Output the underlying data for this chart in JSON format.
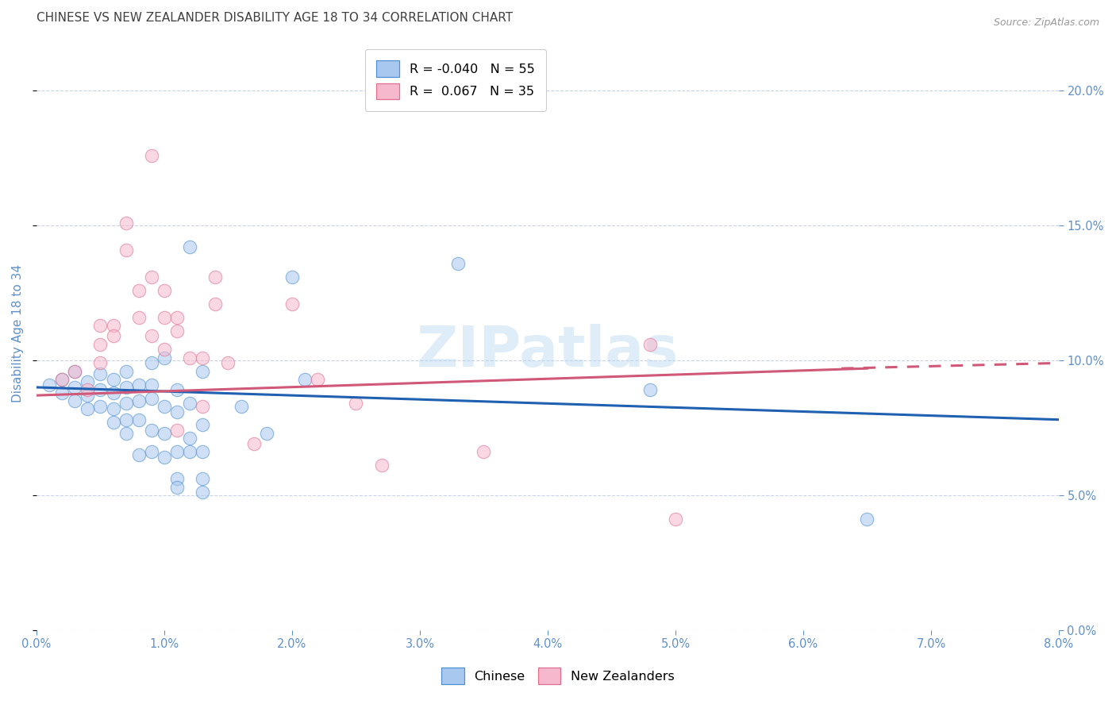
{
  "title": "CHINESE VS NEW ZEALANDER DISABILITY AGE 18 TO 34 CORRELATION CHART",
  "source": "Source: ZipAtlas.com",
  "ylabel": "Disability Age 18 to 34",
  "xlim": [
    0.0,
    0.08
  ],
  "ylim": [
    0.0,
    0.22
  ],
  "xticks": [
    0.0,
    0.01,
    0.02,
    0.03,
    0.04,
    0.05,
    0.06,
    0.07,
    0.08
  ],
  "yticks": [
    0.0,
    0.05,
    0.1,
    0.15,
    0.2
  ],
  "legend_entries": [
    {
      "label": "R = -0.040   N = 55",
      "color": "#a8c8f0"
    },
    {
      "label": "R =  0.067   N = 35",
      "color": "#f5b8cc"
    }
  ],
  "blue_scatter": [
    [
      0.001,
      0.091
    ],
    [
      0.002,
      0.093
    ],
    [
      0.002,
      0.088
    ],
    [
      0.003,
      0.096
    ],
    [
      0.003,
      0.09
    ],
    [
      0.003,
      0.085
    ],
    [
      0.004,
      0.092
    ],
    [
      0.004,
      0.087
    ],
    [
      0.004,
      0.082
    ],
    [
      0.005,
      0.095
    ],
    [
      0.005,
      0.089
    ],
    [
      0.005,
      0.083
    ],
    [
      0.006,
      0.093
    ],
    [
      0.006,
      0.088
    ],
    [
      0.006,
      0.082
    ],
    [
      0.006,
      0.077
    ],
    [
      0.007,
      0.096
    ],
    [
      0.007,
      0.09
    ],
    [
      0.007,
      0.084
    ],
    [
      0.007,
      0.078
    ],
    [
      0.007,
      0.073
    ],
    [
      0.008,
      0.091
    ],
    [
      0.008,
      0.085
    ],
    [
      0.008,
      0.078
    ],
    [
      0.008,
      0.065
    ],
    [
      0.009,
      0.099
    ],
    [
      0.009,
      0.091
    ],
    [
      0.009,
      0.086
    ],
    [
      0.009,
      0.074
    ],
    [
      0.009,
      0.066
    ],
    [
      0.01,
      0.101
    ],
    [
      0.01,
      0.083
    ],
    [
      0.01,
      0.073
    ],
    [
      0.01,
      0.064
    ],
    [
      0.011,
      0.089
    ],
    [
      0.011,
      0.081
    ],
    [
      0.011,
      0.066
    ],
    [
      0.011,
      0.056
    ],
    [
      0.011,
      0.053
    ],
    [
      0.012,
      0.142
    ],
    [
      0.012,
      0.084
    ],
    [
      0.012,
      0.071
    ],
    [
      0.012,
      0.066
    ],
    [
      0.013,
      0.096
    ],
    [
      0.013,
      0.076
    ],
    [
      0.013,
      0.066
    ],
    [
      0.013,
      0.056
    ],
    [
      0.013,
      0.051
    ],
    [
      0.016,
      0.083
    ],
    [
      0.018,
      0.073
    ],
    [
      0.02,
      0.131
    ],
    [
      0.021,
      0.093
    ],
    [
      0.033,
      0.136
    ],
    [
      0.048,
      0.089
    ],
    [
      0.065,
      0.041
    ]
  ],
  "pink_scatter": [
    [
      0.002,
      0.093
    ],
    [
      0.003,
      0.096
    ],
    [
      0.004,
      0.089
    ],
    [
      0.005,
      0.113
    ],
    [
      0.005,
      0.106
    ],
    [
      0.005,
      0.099
    ],
    [
      0.006,
      0.113
    ],
    [
      0.006,
      0.109
    ],
    [
      0.007,
      0.151
    ],
    [
      0.007,
      0.141
    ],
    [
      0.008,
      0.126
    ],
    [
      0.008,
      0.116
    ],
    [
      0.009,
      0.176
    ],
    [
      0.009,
      0.131
    ],
    [
      0.009,
      0.109
    ],
    [
      0.01,
      0.126
    ],
    [
      0.01,
      0.116
    ],
    [
      0.01,
      0.104
    ],
    [
      0.011,
      0.116
    ],
    [
      0.011,
      0.111
    ],
    [
      0.011,
      0.074
    ],
    [
      0.012,
      0.101
    ],
    [
      0.013,
      0.101
    ],
    [
      0.013,
      0.083
    ],
    [
      0.014,
      0.131
    ],
    [
      0.014,
      0.121
    ],
    [
      0.015,
      0.099
    ],
    [
      0.017,
      0.069
    ],
    [
      0.02,
      0.121
    ],
    [
      0.022,
      0.093
    ],
    [
      0.025,
      0.084
    ],
    [
      0.027,
      0.061
    ],
    [
      0.035,
      0.066
    ],
    [
      0.048,
      0.106
    ],
    [
      0.05,
      0.041
    ]
  ],
  "blue_line": {
    "x": [
      0.0,
      0.08
    ],
    "y": [
      0.09,
      0.078
    ]
  },
  "pink_line": {
    "x": [
      0.0,
      0.065
    ],
    "y": [
      0.087,
      0.097
    ]
  },
  "pink_line_dashed": {
    "x": [
      0.063,
      0.08
    ],
    "y": [
      0.097,
      0.099
    ]
  },
  "scatter_size": 140,
  "scatter_alpha": 0.55,
  "blue_color": "#a8c8f0",
  "pink_color": "#f5b8cc",
  "blue_edge_color": "#5090d0",
  "pink_edge_color": "#e07090",
  "blue_line_color": "#2060b0",
  "pink_line_color": "#d05878",
  "background_color": "#ffffff",
  "grid_color": "#c8d4e8",
  "title_fontsize": 11,
  "axis_label_color": "#6090c8",
  "tick_label_color": "#6090c8"
}
